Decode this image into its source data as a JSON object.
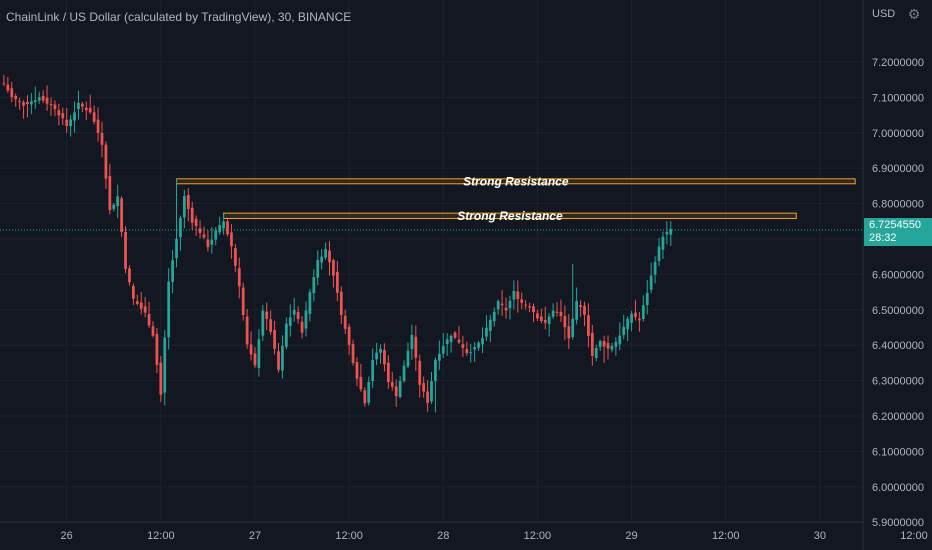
{
  "header": {
    "title": "ChainLink / US Dollar (calculated by TradingView), 30, BINANCE",
    "currency": "USD",
    "settings_icon": "settings-icon"
  },
  "price_tag": {
    "price": "6.7254550",
    "countdown": "28:32"
  },
  "colors": {
    "background": "#131722",
    "grid": "#1e222d",
    "up": "#26a69a",
    "down": "#ef5350",
    "zone_stroke": "#f7a21b",
    "axis_text": "#b2b5be",
    "last_price": "#26a69a"
  },
  "chart_data": {
    "type": "candlestick",
    "title": "ChainLink / US Dollar (calculated by TradingView), 30, BINANCE",
    "ylabel": "USD",
    "ylim": [
      5.9,
      7.3
    ],
    "xlim": [
      -1,
      219
    ],
    "y_ticks": [
      "7.2000000",
      "7.1000000",
      "7.0000000",
      "6.9000000",
      "6.8000000",
      "6.7000000",
      "6.6000000",
      "6.5000000",
      "6.4000000",
      "6.3000000",
      "6.2000000",
      "6.1000000",
      "6.0000000",
      "5.9000000"
    ],
    "x_ticks": [
      {
        "label": "26",
        "index": 16
      },
      {
        "label": "12:00",
        "index": 40
      },
      {
        "label": "27",
        "index": 64
      },
      {
        "label": "12:00",
        "index": 88
      },
      {
        "label": "28",
        "index": 112
      },
      {
        "label": "12:00",
        "index": 136
      },
      {
        "label": "29",
        "index": 160
      },
      {
        "label": "12:00",
        "index": 184
      },
      {
        "label": "30",
        "index": 208
      },
      {
        "label": "12:00",
        "index": 232
      }
    ],
    "grid": true,
    "last_price": 6.725455,
    "annotations": [
      {
        "label": "Strong Resistance",
        "x0": 44,
        "x1": 217,
        "y_low": 6.856,
        "y_high": 6.87
      },
      {
        "label": "Strong Resistance",
        "x0": 56,
        "x1": 202,
        "y_low": 6.758,
        "y_high": 6.773
      }
    ],
    "keypoints": [
      [
        0,
        7.14
      ],
      [
        2,
        7.1
      ],
      [
        5,
        7.08
      ],
      [
        9,
        7.1
      ],
      [
        13,
        7.07
      ],
      [
        16,
        7.02
      ],
      [
        19,
        7.08
      ],
      [
        22,
        7.06
      ],
      [
        25,
        6.97
      ],
      [
        27,
        6.78
      ],
      [
        29,
        6.82
      ],
      [
        31,
        6.62
      ],
      [
        33,
        6.53
      ],
      [
        36,
        6.49
      ],
      [
        38,
        6.43
      ],
      [
        40,
        6.26
      ],
      [
        42,
        6.58
      ],
      [
        44,
        6.7
      ],
      [
        46,
        6.82
      ],
      [
        48,
        6.75
      ],
      [
        50,
        6.72
      ],
      [
        52,
        6.68
      ],
      [
        54,
        6.72
      ],
      [
        56,
        6.75
      ],
      [
        58,
        6.68
      ],
      [
        60,
        6.57
      ],
      [
        62,
        6.4
      ],
      [
        64,
        6.34
      ],
      [
        66,
        6.5
      ],
      [
        68,
        6.44
      ],
      [
        70,
        6.33
      ],
      [
        72,
        6.46
      ],
      [
        74,
        6.5
      ],
      [
        76,
        6.44
      ],
      [
        78,
        6.55
      ],
      [
        80,
        6.64
      ],
      [
        82,
        6.67
      ],
      [
        84,
        6.6
      ],
      [
        86,
        6.49
      ],
      [
        88,
        6.4
      ],
      [
        90,
        6.31
      ],
      [
        92,
        6.24
      ],
      [
        94,
        6.36
      ],
      [
        96,
        6.39
      ],
      [
        98,
        6.3
      ],
      [
        100,
        6.26
      ],
      [
        102,
        6.34
      ],
      [
        104,
        6.43
      ],
      [
        106,
        6.29
      ],
      [
        108,
        6.24
      ],
      [
        110,
        6.36
      ],
      [
        112,
        6.4
      ],
      [
        114,
        6.43
      ],
      [
        116,
        6.41
      ],
      [
        118,
        6.38
      ],
      [
        120,
        6.39
      ],
      [
        122,
        6.42
      ],
      [
        124,
        6.47
      ],
      [
        126,
        6.52
      ],
      [
        128,
        6.5
      ],
      [
        130,
        6.55
      ],
      [
        132,
        6.52
      ],
      [
        134,
        6.51
      ],
      [
        136,
        6.48
      ],
      [
        138,
        6.46
      ],
      [
        140,
        6.5
      ],
      [
        142,
        6.48
      ],
      [
        144,
        6.42
      ],
      [
        146,
        6.52
      ],
      [
        148,
        6.49
      ],
      [
        150,
        6.37
      ],
      [
        152,
        6.41
      ],
      [
        154,
        6.39
      ],
      [
        156,
        6.41
      ],
      [
        158,
        6.45
      ],
      [
        160,
        6.49
      ],
      [
        162,
        6.47
      ],
      [
        164,
        6.55
      ],
      [
        166,
        6.64
      ],
      [
        168,
        6.71
      ],
      [
        170,
        6.725
      ]
    ],
    "wick_events": [
      {
        "index": 40,
        "low": 6.24
      },
      {
        "index": 44,
        "high": 6.87
      },
      {
        "index": 56,
        "high": 6.77
      },
      {
        "index": 82,
        "high": 6.69
      },
      {
        "index": 110,
        "low": 6.21
      },
      {
        "index": 145,
        "high": 6.63
      },
      {
        "index": 153,
        "low": 6.35
      }
    ]
  }
}
